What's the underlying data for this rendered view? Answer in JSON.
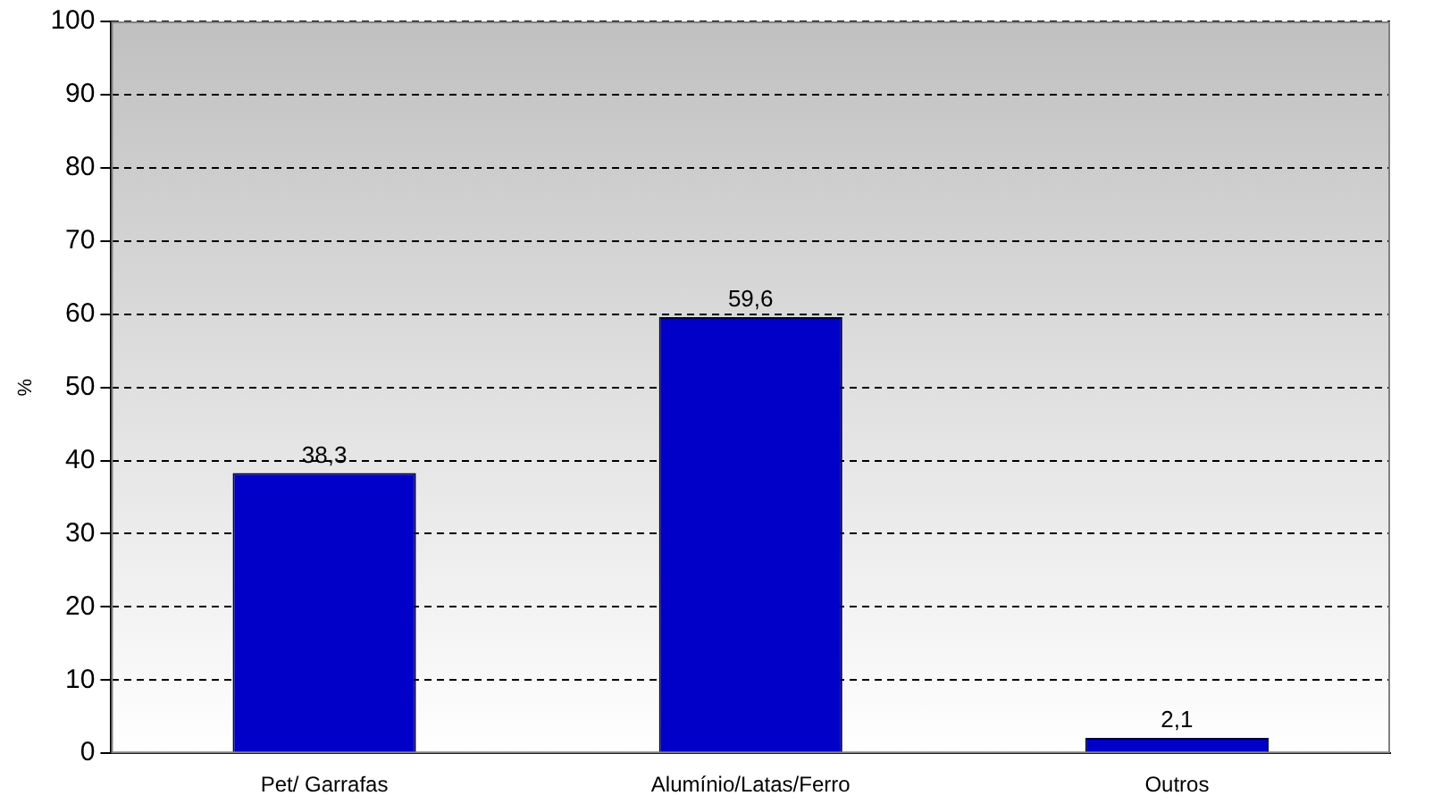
{
  "chart_data": {
    "type": "bar",
    "ylabel": "%",
    "categories": [
      "Pet/ Garrafas",
      "Alumínio/Latas/Ferro",
      "Outros"
    ],
    "values": [
      38.3,
      59.6,
      2.1
    ],
    "color": "#0000c8",
    "ylim": [
      0,
      100
    ],
    "yticks": [
      0,
      10,
      20,
      30,
      40,
      50,
      60,
      70,
      80,
      90,
      100
    ],
    "value_labels": [
      "38,3",
      "59,6",
      "2,1"
    ],
    "grid": "y",
    "legend": false
  }
}
